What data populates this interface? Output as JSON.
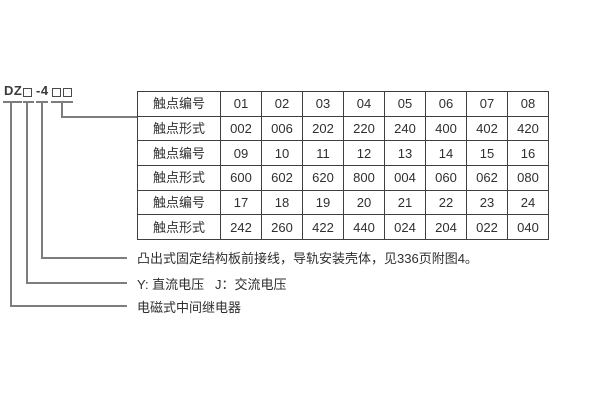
{
  "model": {
    "prefix": "DZ",
    "series": "-4",
    "box_symbol": "□"
  },
  "contact_table": {
    "rows": [
      {
        "label": "触点编号",
        "values": [
          "01",
          "02",
          "03",
          "04",
          "05",
          "06",
          "07",
          "08"
        ]
      },
      {
        "label": "触点形式",
        "values": [
          "002",
          "006",
          "202",
          "220",
          "240",
          "400",
          "402",
          "420"
        ]
      },
      {
        "label": "触点编号",
        "values": [
          "09",
          "10",
          "11",
          "12",
          "13",
          "14",
          "15",
          "16"
        ]
      },
      {
        "label": "触点形式",
        "values": [
          "600",
          "602",
          "620",
          "800",
          "004",
          "060",
          "062",
          "080"
        ]
      },
      {
        "label": "触点编号",
        "values": [
          "17",
          "18",
          "19",
          "20",
          "21",
          "22",
          "23",
          "24"
        ]
      },
      {
        "label": "触点形式",
        "values": [
          "242",
          "260",
          "422",
          "440",
          "024",
          "204",
          "022",
          "040"
        ]
      }
    ]
  },
  "annotations": {
    "mounting": "凸出式固定结构板前接线，导轨安装壳体，见336页附图4。",
    "voltage": "Y: 直流电压   J：交流电压",
    "relay_type": "电磁式中间继电器"
  },
  "colors": {
    "background": "#ffffff",
    "connector_line": "#7d7d7d",
    "table_border": "#3f3f3f",
    "text": "#2f2f2f"
  }
}
